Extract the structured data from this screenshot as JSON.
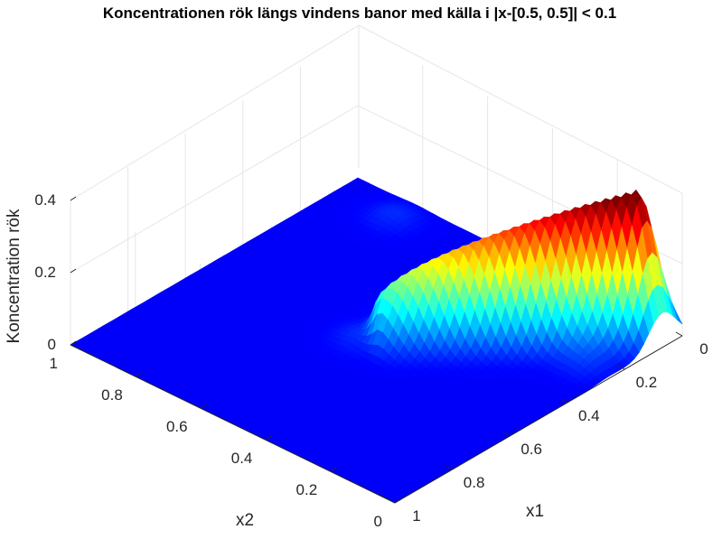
{
  "chart_data": {
    "type": "surface",
    "title": "Koncentrationen rök längs vindens banor med källa i |x-[0.5, 0.5]| < 0.1",
    "xlabel": "x1",
    "ylabel": "x2",
    "zlabel": "Koncentration rök",
    "xlim": [
      0,
      1
    ],
    "ylim": [
      0,
      1
    ],
    "zlim": [
      0,
      0.4
    ],
    "x_ticks": [
      "0",
      "0.2",
      "0.4",
      "0.6",
      "0.8",
      "1"
    ],
    "y_ticks": [
      "0",
      "0.2",
      "0.4",
      "0.6",
      "0.8",
      "1"
    ],
    "z_ticks": [
      "0",
      "0.2",
      "0.4"
    ],
    "colormap": "jet",
    "grid": true,
    "features": [
      {
        "kind": "ridge",
        "x1_start": 0.5,
        "x2_start": 0.5,
        "x1_end": 0.07,
        "x2_end": 0.08,
        "peak_x1": 0.07,
        "peak_x2": 0.08,
        "peak_value": 0.4
      },
      {
        "kind": "bump",
        "x1": 0.25,
        "x2": 0.08,
        "value": 0.03
      },
      {
        "kind": "bump",
        "x1": 0.08,
        "x2": 0.82,
        "value": 0.02
      }
    ]
  }
}
